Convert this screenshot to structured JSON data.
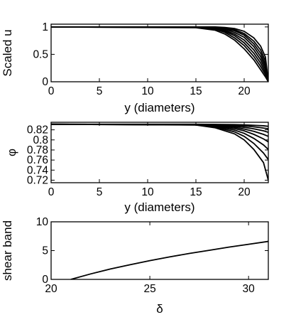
{
  "chart_data": [
    {
      "type": "line",
      "xlabel": "y (diameters)",
      "ylabel": "Scaled u",
      "xlim": [
        0,
        22.5
      ],
      "ylim": [
        0,
        1.05
      ],
      "xticks": [
        0,
        5,
        10,
        15,
        20
      ],
      "yticks": [
        0,
        0.5,
        1
      ],
      "ytick_labels": [
        "0",
        "0.5",
        "1"
      ],
      "grid": false,
      "series": [
        {
          "x": [
            0,
            15,
            17,
            18,
            19,
            20,
            21,
            21.7,
            22.2,
            22.5
          ],
          "y": [
            1,
            1,
            1,
            0.99,
            0.97,
            0.92,
            0.8,
            0.65,
            0.45,
            0.0
          ]
        },
        {
          "x": [
            0,
            15,
            17,
            18,
            19,
            20,
            21,
            21.7,
            22.2,
            22.5
          ],
          "y": [
            1,
            1,
            0.99,
            0.98,
            0.95,
            0.88,
            0.74,
            0.58,
            0.38,
            0.0
          ]
        },
        {
          "x": [
            0,
            15,
            17,
            18,
            19,
            20,
            21,
            21.7,
            22.2,
            22.5
          ],
          "y": [
            1,
            1,
            0.99,
            0.97,
            0.93,
            0.85,
            0.69,
            0.52,
            0.32,
            0.0
          ]
        },
        {
          "x": [
            0,
            15,
            17,
            18,
            19,
            20,
            21,
            21.7,
            22.2,
            22.5
          ],
          "y": [
            1,
            1,
            0.99,
            0.96,
            0.9,
            0.81,
            0.64,
            0.46,
            0.27,
            0.0
          ]
        },
        {
          "x": [
            0,
            15,
            17,
            18,
            19,
            20,
            21,
            21.7,
            22.2,
            22.5
          ],
          "y": [
            1,
            1,
            0.98,
            0.94,
            0.87,
            0.76,
            0.58,
            0.4,
            0.22,
            0.0
          ]
        },
        {
          "x": [
            0,
            15,
            17,
            18,
            19,
            20,
            21,
            21.7,
            22.2,
            22.5
          ],
          "y": [
            1,
            0.995,
            0.97,
            0.92,
            0.84,
            0.71,
            0.52,
            0.34,
            0.17,
            0.0
          ]
        },
        {
          "x": [
            0,
            15,
            17,
            18,
            19,
            20,
            21,
            21.7,
            22.2,
            22.5
          ],
          "y": [
            1,
            0.99,
            0.96,
            0.9,
            0.8,
            0.66,
            0.46,
            0.28,
            0.13,
            0.0
          ]
        },
        {
          "x": [
            0,
            15,
            17,
            18,
            19,
            20,
            21,
            21.7,
            22.2,
            22.5
          ],
          "y": [
            1,
            0.985,
            0.94,
            0.87,
            0.76,
            0.6,
            0.4,
            0.22,
            0.09,
            0.0
          ]
        }
      ]
    },
    {
      "type": "line",
      "xlabel": "y (diameters)",
      "ylabel": "φ",
      "xlim": [
        0,
        22.5
      ],
      "ylim": [
        0.715,
        0.835
      ],
      "xticks": [
        0,
        5,
        10,
        15,
        20
      ],
      "yticks": [
        0.72,
        0.74,
        0.76,
        0.78,
        0.8,
        0.82
      ],
      "ytick_labels": [
        "0.72",
        "0.74",
        "0.76",
        "0.78",
        "0.8",
        "0.82"
      ],
      "grid": false,
      "series": [
        {
          "x": [
            0,
            15,
            17,
            19,
            20,
            21,
            22,
            22.5
          ],
          "y": [
            0.831,
            0.831,
            0.8308,
            0.8303,
            0.8298,
            0.829,
            0.828,
            0.827
          ]
        },
        {
          "x": [
            0,
            15,
            17,
            19,
            20,
            21,
            22,
            22.5
          ],
          "y": [
            0.831,
            0.8308,
            0.8303,
            0.829,
            0.8278,
            0.826,
            0.8235,
            0.822
          ]
        },
        {
          "x": [
            0,
            15,
            17,
            19,
            20,
            21,
            22,
            22.5
          ],
          "y": [
            0.831,
            0.8306,
            0.8295,
            0.827,
            0.825,
            0.822,
            0.818,
            0.815
          ]
        },
        {
          "x": [
            0,
            15,
            17,
            19,
            20,
            21,
            22,
            22.5
          ],
          "y": [
            0.831,
            0.8304,
            0.8288,
            0.825,
            0.8215,
            0.817,
            0.811,
            0.807
          ]
        },
        {
          "x": [
            0,
            15,
            17,
            19,
            20,
            21,
            22,
            22.5
          ],
          "y": [
            0.831,
            0.8302,
            0.828,
            0.8225,
            0.818,
            0.811,
            0.802,
            0.796
          ]
        },
        {
          "x": [
            0,
            15,
            17,
            19,
            20,
            21,
            22,
            22.5
          ],
          "y": [
            0.831,
            0.83,
            0.8268,
            0.8195,
            0.813,
            0.803,
            0.79,
            0.781
          ]
        },
        {
          "x": [
            0,
            15,
            17,
            19,
            20,
            21,
            22,
            22.5
          ],
          "y": [
            0.831,
            0.8298,
            0.8255,
            0.816,
            0.807,
            0.793,
            0.774,
            0.761
          ]
        },
        {
          "x": [
            0,
            15,
            17,
            19,
            20,
            21,
            22,
            22.5
          ],
          "y": [
            0.831,
            0.8296,
            0.824,
            0.812,
            0.8,
            0.781,
            0.755,
            0.72
          ]
        }
      ]
    },
    {
      "type": "line",
      "xlabel": "δ",
      "ylabel": "shear band",
      "xlim": [
        20,
        31
      ],
      "ylim": [
        0,
        10
      ],
      "xticks": [
        20,
        25,
        30
      ],
      "yticks": [
        0,
        5,
        10
      ],
      "ytick_labels": [
        "0",
        "5",
        "10"
      ],
      "grid": false,
      "series": [
        {
          "x": [
            21,
            22,
            23,
            24,
            25,
            26,
            27,
            28,
            29,
            30,
            31
          ],
          "y": [
            0,
            0.95,
            1.8,
            2.55,
            3.25,
            3.9,
            4.5,
            5.05,
            5.6,
            6.1,
            6.6
          ]
        }
      ]
    }
  ]
}
